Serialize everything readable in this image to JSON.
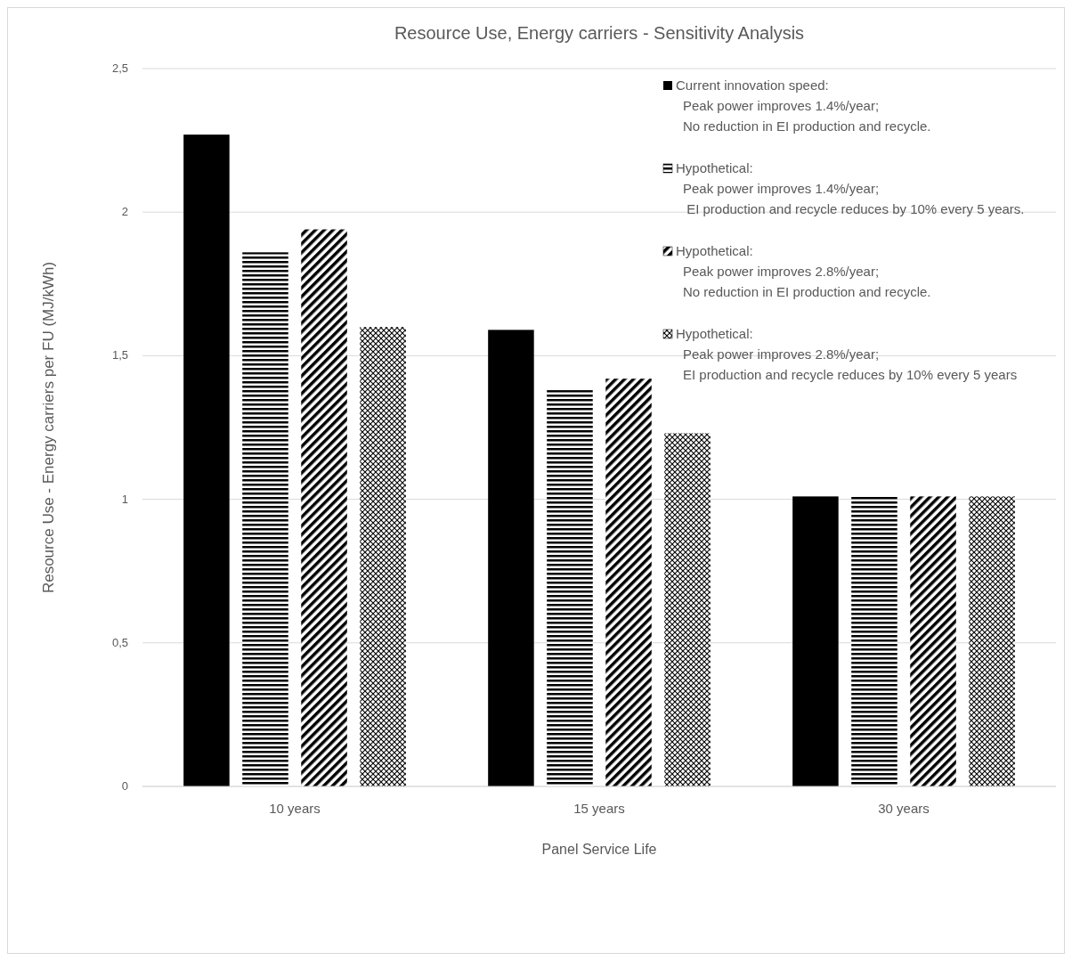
{
  "chart_data": {
    "type": "bar",
    "title": "Resource Use, Energy carriers - Sensitivity Analysis",
    "xlabel": "Panel Service Life",
    "ylabel": "Resource Use - Energy carriers per FU (MJ/kWh)",
    "categories": [
      "10 years",
      "15 years",
      "30 years"
    ],
    "series": [
      {
        "name": "Current innovation speed:\nPeak power improves 1.4%/year;\nNo reduction in EI production and recycle.",
        "color": "#000000",
        "values": [
          2.27,
          1.59,
          1.01
        ]
      },
      {
        "name": "Hypothetical:\nPeak power improves 1.4%/year;\n EI production and recycle reduces by 10% every 5 years.",
        "color": "#000000",
        "values": [
          1.86,
          1.38,
          1.01
        ]
      },
      {
        "name": "Hypothetical:\nPeak power improves 2.8%/year;\nNo reduction in EI production and recycle.",
        "color": "#000000",
        "values": [
          1.94,
          1.42,
          1.01
        ]
      },
      {
        "name": "Hypothetical:\nPeak power improves 2.8%/year;\nEI production and recycle reduces by 10% every 5 years",
        "color": "#000000",
        "values": [
          1.6,
          1.23,
          1.01
        ]
      }
    ],
    "ylim": [
      0,
      2.5
    ],
    "yticks": [
      0,
      {
        "value": 0.5,
        "label": "0,5"
      },
      1,
      {
        "value": 1.5,
        "label": "1,5"
      },
      2,
      {
        "value": 2.5,
        "label": "2,5"
      }
    ],
    "grid": "y",
    "legend": "top right"
  }
}
